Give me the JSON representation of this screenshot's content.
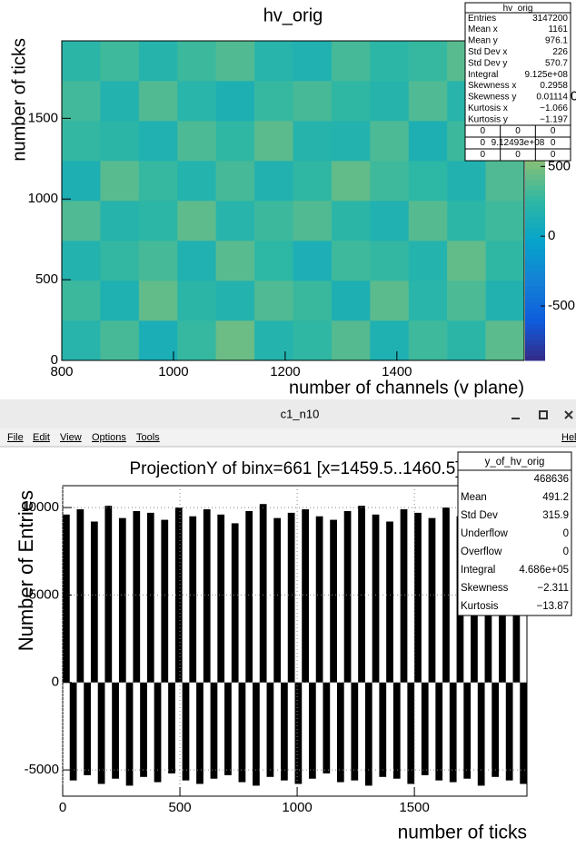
{
  "window": {
    "title": "c1_n10",
    "menu": [
      "File",
      "Edit",
      "View",
      "Options",
      "Tools",
      "Hel"
    ]
  },
  "chart_data": [
    {
      "type": "heatmap",
      "title": "hv_orig",
      "x_label": "number of channels (v plane)",
      "y_label": "number of ticks",
      "xbins": [
        800,
        869,
        938,
        1007,
        1076,
        1145,
        1214,
        1283,
        1352,
        1421,
        1490,
        1559,
        1628
      ],
      "ybins": [
        0,
        247.5,
        495,
        742.5,
        990,
        1237.5,
        1485,
        1732.5,
        1980
      ],
      "z": [
        [
          210,
          340,
          120,
          280,
          450,
          190,
          260,
          380,
          150,
          310,
          230,
          400
        ],
        [
          300,
          150,
          420,
          230,
          180,
          360,
          290,
          140,
          400,
          220,
          350,
          170
        ],
        [
          180,
          270,
          330,
          160,
          390,
          250,
          130,
          310,
          270,
          190,
          420,
          260
        ],
        [
          360,
          200,
          240,
          410,
          210,
          300,
          370,
          230,
          160,
          380,
          240,
          310
        ],
        [
          140,
          390,
          280,
          190,
          330,
          170,
          260,
          420,
          310,
          250,
          170,
          360
        ],
        [
          270,
          230,
          160,
          350,
          260,
          400,
          200,
          180,
          350,
          140,
          300,
          220
        ],
        [
          320,
          180,
          370,
          220,
          140,
          280,
          340,
          260,
          200,
          360,
          210,
          290
        ],
        [
          230,
          310,
          200,
          300,
          370,
          210,
          160,
          330,
          240,
          280,
          390,
          180
        ]
      ],
      "zlim": [
        -890,
        1400
      ],
      "zticks": [
        -500,
        0,
        500,
        1000
      ],
      "palette": [
        "#352a87",
        "#0f5cdd",
        "#1481d6",
        "#06a4ca",
        "#2eb7a4",
        "#87bf77",
        "#d1bb59",
        "#fec832",
        "#f9fb0e"
      ],
      "xlim": [
        800,
        1628
      ],
      "ylim": [
        0,
        1980
      ],
      "xticks": [
        800,
        1000,
        1200,
        1400
      ],
      "yticks": [
        0,
        500,
        1000,
        1500
      ],
      "stats": {
        "title": "hv_orig",
        "rows": [
          [
            "Entries",
            "3147200"
          ],
          [
            "Mean x",
            "1161"
          ],
          [
            "Mean y",
            "976.1"
          ],
          [
            "Std Dev x",
            "226"
          ],
          [
            "Std Dev y",
            "570.7"
          ],
          [
            "Integral",
            "9.125e+08"
          ],
          [
            "Skewness x",
            "0.2958"
          ],
          [
            "Skewness y",
            "0.01114"
          ],
          [
            "Kurtosis x",
            "−1.066"
          ],
          [
            "Kurtosis y",
            "−1.197"
          ]
        ],
        "grid": [
          [
            "0",
            "0",
            "0"
          ],
          [
            "0",
            "9.12493e+08",
            "0"
          ],
          [
            "0",
            "0",
            "0"
          ]
        ]
      }
    },
    {
      "type": "histogram",
      "title": "ProjectionY of binx=661 [x=1459.5..1460.5]",
      "x_label": "number of ticks",
      "y_label": "Number of Entries",
      "bins": [
        0,
        30,
        60,
        90,
        120,
        150,
        180,
        210,
        240,
        270,
        300,
        330,
        360,
        390,
        420,
        450,
        480,
        510,
        540,
        570,
        600,
        630,
        660,
        690,
        720,
        750,
        780,
        810,
        840,
        870,
        900,
        930,
        960,
        990,
        1020,
        1050,
        1080,
        1110,
        1140,
        1170,
        1200,
        1230,
        1260,
        1290,
        1320,
        1350,
        1380,
        1410,
        1440,
        1470,
        1500,
        1530,
        1560,
        1590,
        1620,
        1650,
        1680,
        1710,
        1740,
        1770,
        1800,
        1830,
        1860,
        1890,
        1920,
        1950,
        1980
      ],
      "values": [
        9600,
        -5600,
        9900,
        -5300,
        9200,
        -5800,
        10100,
        -5500,
        9400,
        -5900,
        9800,
        -5400,
        9700,
        -5700,
        9300,
        -5200,
        10000,
        -5600,
        9500,
        -5800,
        9900,
        -5500,
        9600,
        -5300,
        9100,
        -5700,
        9800,
        -5900,
        10200,
        -5400,
        9400,
        -5600,
        9700,
        -5800,
        9900,
        -5500,
        9500,
        -5200,
        9300,
        -5700,
        9800,
        -5600,
        10100,
        -5900,
        9600,
        -5400,
        9200,
        -5500,
        9900,
        -5800,
        9700,
        -5300,
        9400,
        -5600,
        10000,
        -5700,
        9500,
        -5500,
        9800,
        -5900,
        9300,
        -5400,
        9600,
        -5600,
        9900,
        -5800
      ],
      "color": "#000000",
      "xlim": [
        0,
        1980
      ],
      "ylim": [
        -6500,
        11250
      ],
      "xticks": [
        0,
        500,
        1000,
        1500
      ],
      "yticks": [
        -5000,
        0,
        5000,
        10000
      ],
      "grid": true,
      "stats": {
        "title": "y_of_hv_orig",
        "rows": [
          [
            "468636"
          ],
          [
            "Mean",
            "491.2"
          ],
          [
            "Std Dev",
            "315.9"
          ],
          [
            "Underflow",
            "0"
          ],
          [
            "Overflow",
            "0"
          ],
          [
            "Integral",
            "4.686e+05"
          ],
          [
            "Skewness",
            "−2.311"
          ],
          [
            "Kurtosis",
            "−13.87"
          ]
        ]
      }
    }
  ]
}
